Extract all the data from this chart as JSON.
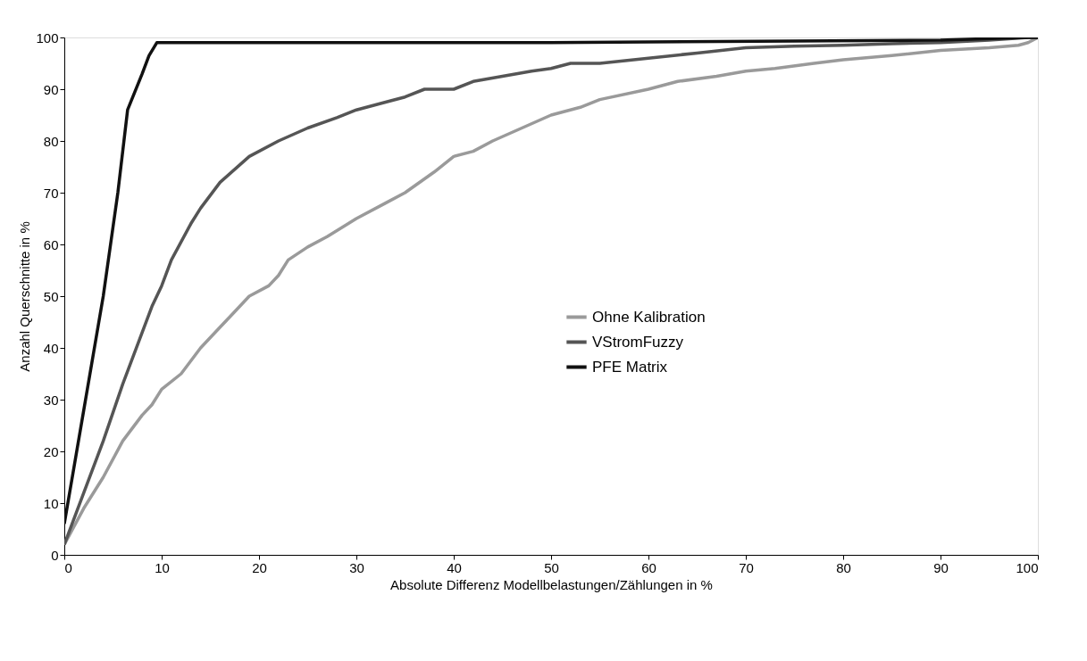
{
  "chart_data": {
    "type": "line",
    "xlabel": "Absolute Differenz Modellbelastungen/Zählungen in %",
    "ylabel": "Anzahl Querschnitte in %",
    "xlim": [
      0,
      100
    ],
    "xticks": [
      0,
      10,
      20,
      30,
      40,
      50,
      60,
      70,
      80,
      90,
      100
    ],
    "ylim": [
      0,
      100
    ],
    "yticks": [
      0,
      10,
      20,
      30,
      40,
      50,
      60,
      70,
      80,
      90,
      100
    ],
    "grid": false,
    "legend": "right",
    "marker": "none",
    "line_style": "solid",
    "series": [
      {
        "name": "Ohne Kalibration",
        "color": "#9a9a9a",
        "x": [
          0,
          2,
          4,
          6,
          8,
          9,
          10,
          12,
          14,
          16,
          17,
          19,
          21,
          22,
          23,
          25,
          27,
          30,
          33,
          35,
          38,
          40,
          42,
          44,
          47,
          50,
          53,
          55,
          60,
          63,
          67,
          70,
          73,
          77,
          80,
          85,
          90,
          95,
          98,
          99,
          100
        ],
        "values": [
          2,
          9,
          15,
          22,
          27,
          29,
          32,
          35,
          40,
          44,
          46,
          50,
          52,
          54,
          57,
          59.5,
          61.5,
          65,
          68,
          70,
          74,
          77,
          78,
          80,
          82.5,
          85,
          86.5,
          88,
          90,
          91.5,
          92.5,
          93.5,
          94,
          95,
          95.7,
          96.5,
          97.5,
          98,
          98.5,
          99,
          100
        ]
      },
      {
        "name": "VStromFuzzy",
        "color": "#555555",
        "x": [
          0,
          2,
          4,
          6,
          8,
          9,
          10,
          11,
          13,
          14,
          16,
          19,
          22,
          25,
          28,
          30,
          33,
          35,
          37,
          40,
          42,
          45,
          48,
          50,
          52,
          55,
          60,
          65,
          70,
          75,
          80,
          85,
          90,
          95,
          99,
          100
        ],
        "values": [
          2,
          12,
          22,
          33,
          43,
          48,
          52,
          57,
          64,
          67,
          72,
          77,
          80,
          82.5,
          84.5,
          86,
          87.5,
          88.5,
          90,
          90,
          91.5,
          92.5,
          93.5,
          94,
          95,
          95,
          96,
          97,
          98,
          98.3,
          98.5,
          98.8,
          99,
          99.5,
          100,
          100
        ]
      },
      {
        "name": "PFE Matrix",
        "color": "#111111",
        "x": [
          0,
          2,
          4,
          5.5,
          6.5,
          8,
          8.7,
          9.5,
          10,
          50,
          90,
          99,
          100
        ],
        "values": [
          6,
          28,
          50,
          70,
          86,
          93,
          96.5,
          99,
          99,
          99,
          99.5,
          100,
          100
        ]
      }
    ]
  }
}
